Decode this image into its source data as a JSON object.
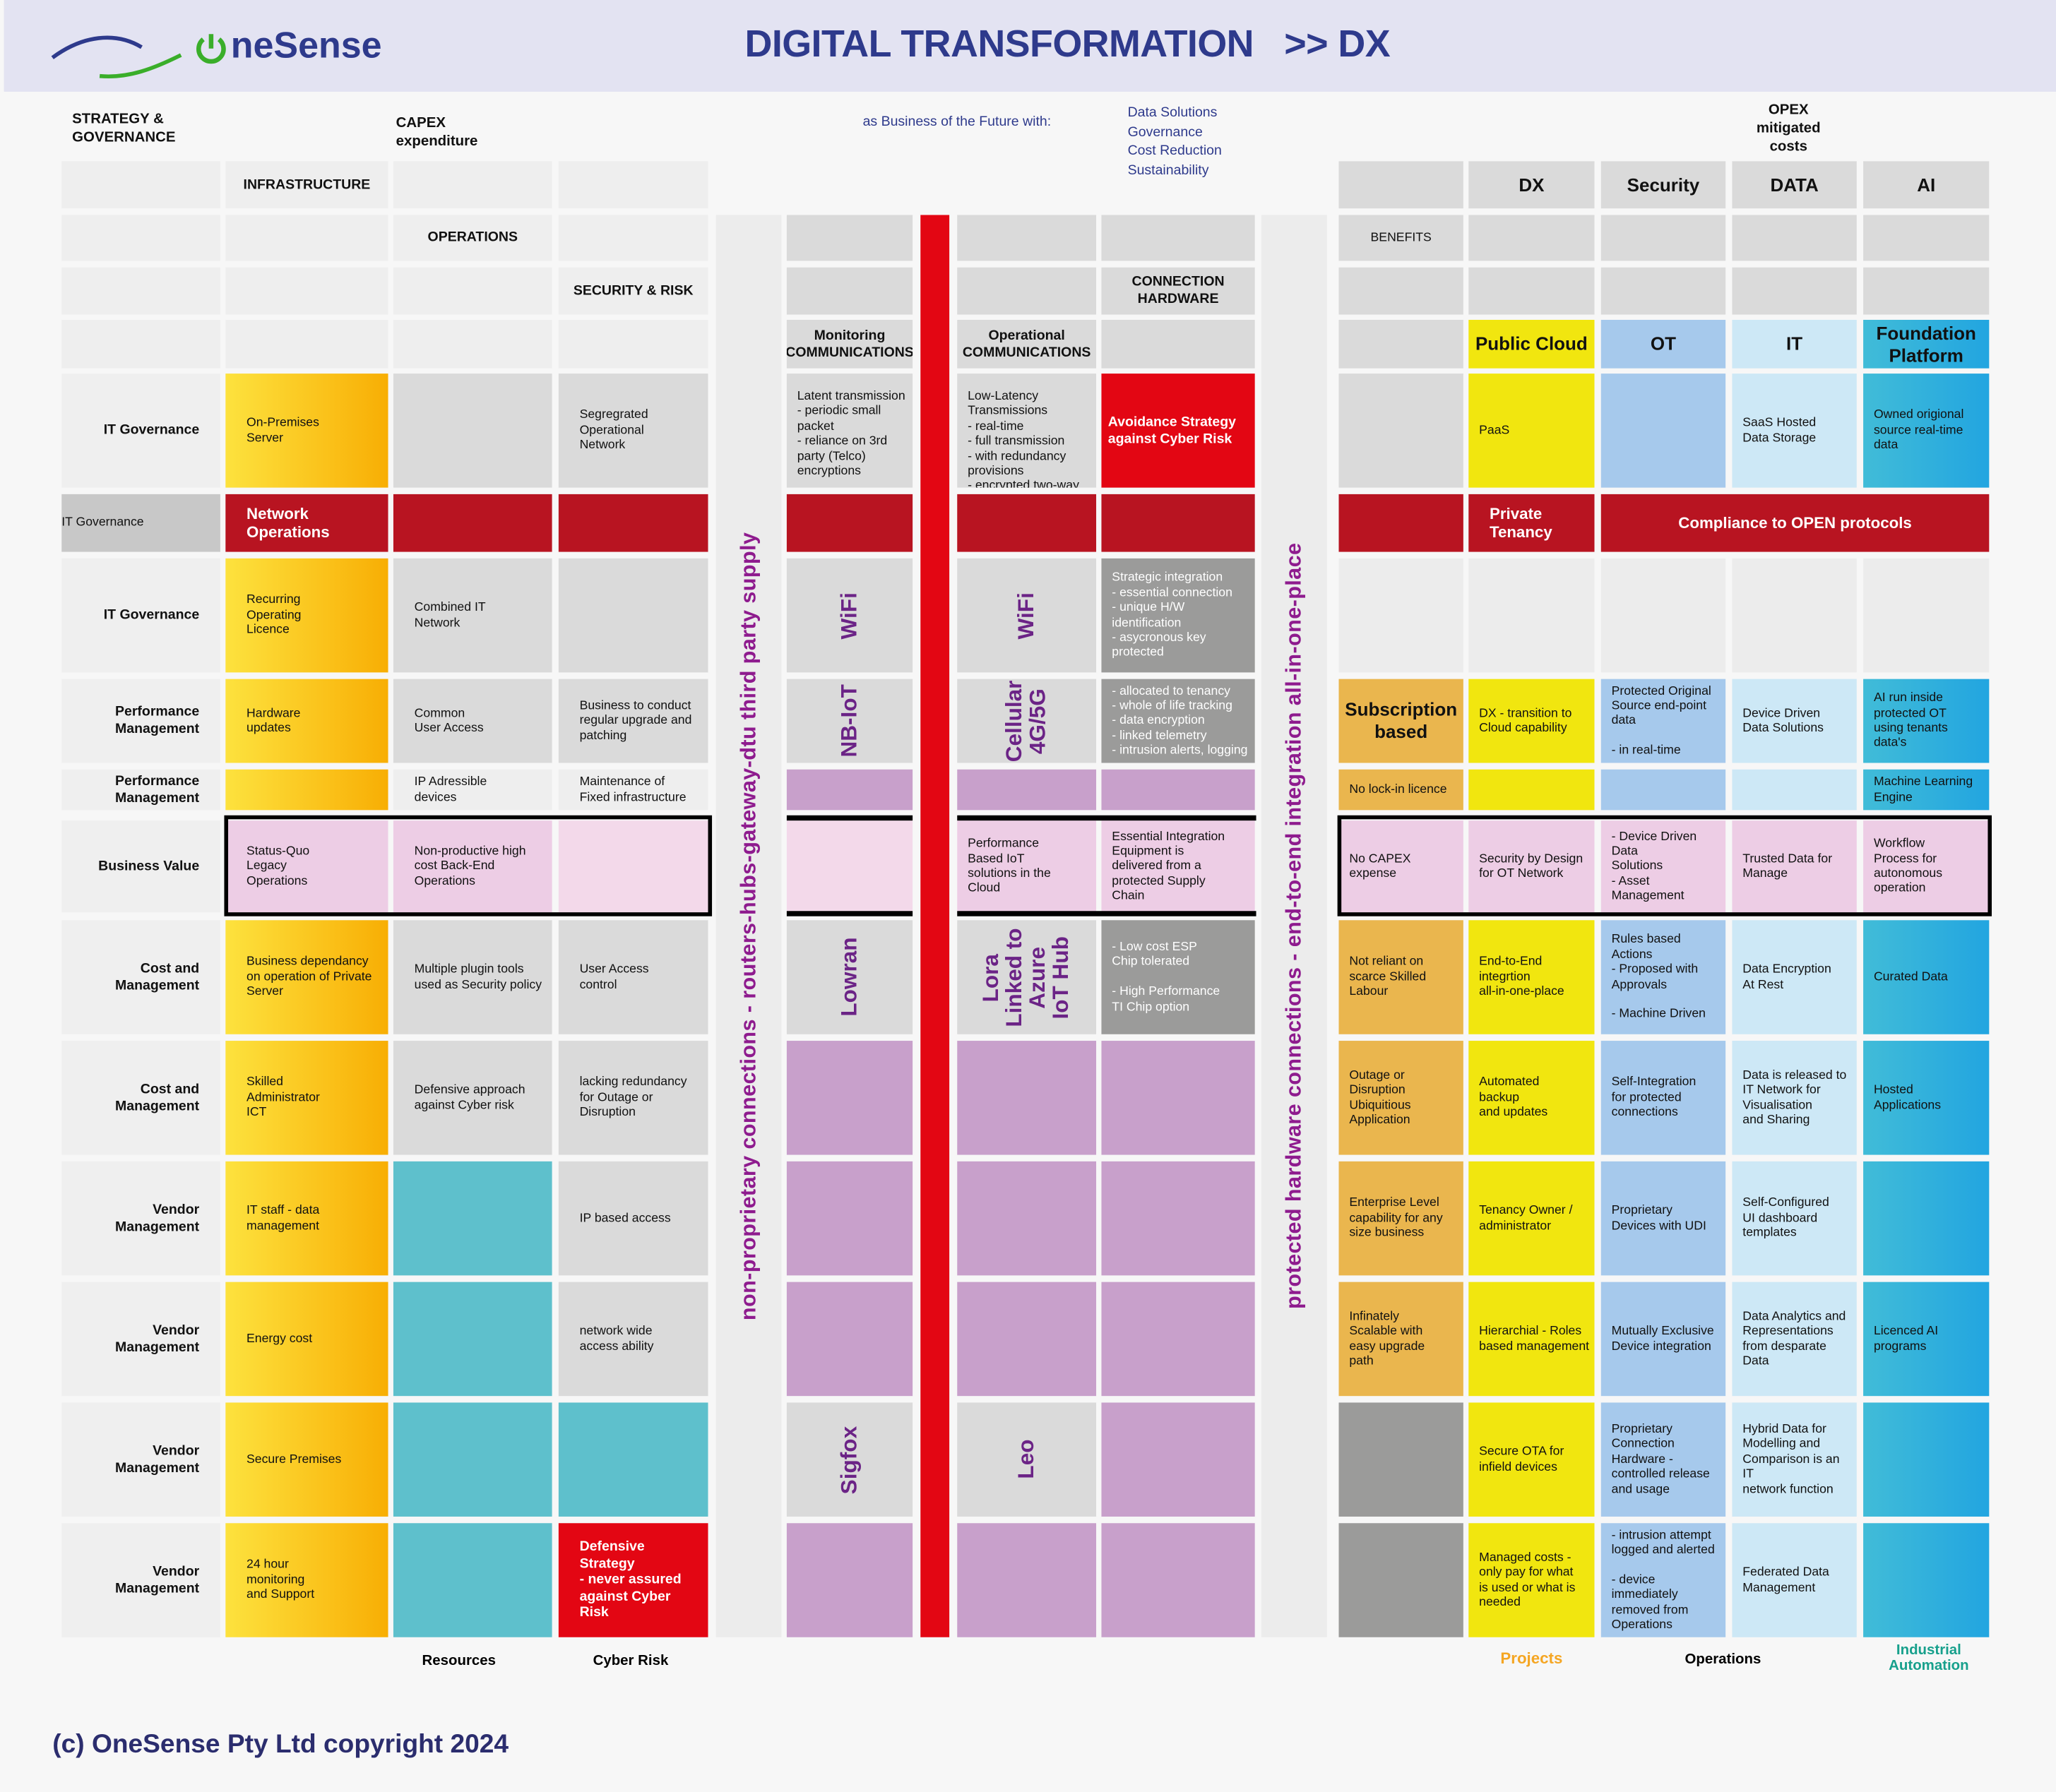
{
  "header": {
    "logo_text": "OneSense",
    "logo_visible": "neSense",
    "title": "DIGITAL TRANSFORMATION",
    "title_suffix": ">> DX",
    "background_color": "#e3e3f2",
    "title_color": "#2e3a8c"
  },
  "top_labels": {
    "strategy": "STRATEGY &\nGOVERNANCE",
    "capex": "CAPEX\nexpenditure",
    "business_future": "as Business of the Future with:",
    "future_items": [
      "Data Solutions",
      "Governance",
      "Cost Reduction",
      "Sustainability"
    ],
    "opex": "OPEX\nmitigated\ncosts"
  },
  "col_headers": {
    "infrastructure": "INFRASTRUCTURE",
    "operations": "OPERATIONS",
    "security_risk": "SECURITY & RISK",
    "monitoring": "Monitoring\nCOMMUNICATIONS",
    "operational": "Operational\nCOMMUNICATIONS",
    "connection_hw": "CONNECTION\nHARDWARE",
    "benefits": "BENEFITS",
    "dx": "DX",
    "security": "Security",
    "data": "DATA",
    "ai": "AI",
    "public_cloud": "Public Cloud",
    "ot": "OT",
    "it": "IT",
    "foundation": "Foundation\nPlatform"
  },
  "rows": [
    {
      "label": "IT Governance",
      "infra": "On-Premises\nServer",
      "monitoring": "Latent transmission\n -  periodic small\n    packet\n - reliance on 3rd\n   party (Telco)\n   encryptions",
      "operational": "Low-Latency Transmissions\n - real-time\n - full transmission\n - with redundancy\n   provisions\n - encrypted two-way\n   data channel",
      "connection": "Avoidance Strategy\nagainst Cyber Risk",
      "dx": "PaaS",
      "security": "Segregrated\nOperational\nNetwork",
      "data": "SaaS Hosted\nData Storage",
      "ai": "Owned origional\nsource real-time\ndata"
    },
    {
      "label": "IT Governance",
      "infra": "Network\nOperations",
      "dx": "Private\nTenancy",
      "compliance": "Compliance to OPEN protocols"
    },
    {
      "label": "IT Governance",
      "infra": "Recurring\nOperating\nLicence",
      "operations": "Combined IT\nNetwork",
      "monitoring": "WiFi",
      "operational": "WiFi",
      "connection": "Strategic integration\n- essential connection\n- unique H/W identification\n- asycronous key protected"
    },
    {
      "label": "Performance\nManagement",
      "infra": "Hardware\nupdates",
      "operations": "Common\nUser Access",
      "security": "Business to conduct\nregular upgrade and\npatching",
      "monitoring": "NB-IoT",
      "operational": "Cellular\n4G/5G",
      "connection": "- allocated to tenancy\n- whole of life tracking\n- data encryption\n- linked telemetry\n- intrusion alerts, logging",
      "benefits": "Subscription\nbased",
      "dx": "DX - transition to\nCloud capability",
      "sec": "Protected Original\nSource end-point\ndata\n\n- in real-time",
      "data": "Device Driven\nData Solutions",
      "ai": "AI run inside\nprotected OT\nusing tenants\ndata's"
    },
    {
      "label": "Performance\nManagement",
      "operations": "IP Adressible\ndevices",
      "security": "Maintenance of\nFixed infrastructure",
      "benefits": "No lock-in licence",
      "ai": "Machine Learning\nEngine"
    },
    {
      "label": "Business Value",
      "infra": "Status-Quo\nLegacy\nOperations",
      "operations": "Non-productive high\ncost Back-End\nOperations",
      "operational": "Performance\nBased IoT\nsolutions in the\nCloud",
      "connection": "Essential Integration\nEquipment is\ndelivered from a\nprotected Supply\nChain",
      "benefits": "No CAPEX\nexpense",
      "dx": "Security by Design\nfor OT Network",
      "sec": "-   Device Driven Data\n    Solutions\n-  Asset Management",
      "data": "Trusted Data for\nManage",
      "ai": "Workflow\nProcess for\nautonomous\noperation"
    },
    {
      "label": "Cost and\nManagement",
      "infra": "Business dependancy\non operation of Private\nServer",
      "operations": "Multiple plugin tools\nused as Security policy",
      "security": "User Access\ncontrol",
      "monitoring": "Lowran",
      "operational": "Lora\nLinked to\nAzure\nIoT Hub",
      "connection": "-  Low cost ESP\n   Chip tolerated\n\n-  High Performance\n   TI Chip option",
      "benefits": "Not reliant on\nscarce Skilled\nLabour",
      "dx": "End-to-End\nintegrtion\nall-in-one-place",
      "sec": "Rules based Actions\n  -  Proposed with\n     Approvals\n\n  - Machine Driven",
      "data": "Data Encryption\nAt Rest",
      "ai": "Curated Data"
    },
    {
      "label": "Cost and\nManagement",
      "infra": "Skilled\nAdministrator\nICT",
      "operations": "Defensive approach\nagainst Cyber risk",
      "security": "lacking redundancy\nfor Outage or\nDisruption",
      "benefits": "Outage or\nDisruption\nUbiquitious\nApplication",
      "dx": "Automated\nbackup\nand updates",
      "sec": "Self-Integration\nfor protected\nconnections",
      "data": "Data is released to\nIT Network for\nVisualisation\nand Sharing",
      "ai": "Hosted\nApplications"
    },
    {
      "label": "Vendor\nManagement",
      "infra": "IT staff - data\nmanagement",
      "security": "IP based access",
      "benefits": "Enterprise Level\ncapability for any\nsize business",
      "dx": "Tenancy Owner /\nadministrator",
      "sec": "Proprietary\nDevices with UDI",
      "data": "Self-Configured\nUI dashboard\ntemplates"
    },
    {
      "label": "Vendor\nManagement",
      "infra": "Energy cost",
      "security": "network wide\naccess ability",
      "benefits": "Infinately\nScalable with\neasy upgrade\npath",
      "dx": "Hierarchial - Roles\nbased management",
      "sec": "Mutually Exclusive\nDevice integration",
      "data": "Data Analytics and\nRepresentations\nfrom desparate\nData",
      "ai": "Licenced AI\nprograms"
    },
    {
      "label": "Vendor\nManagement",
      "infra": "Secure Premises",
      "monitoring": "Sigfox",
      "operational": "Leo",
      "dx": "Secure OTA for\ninfield devices",
      "sec": "Proprietary\nConnection\nHardware -\ncontrolled release\nand usage",
      "data": "Hybrid Data for\nModelling and\nComparison is an IT\nnetwork function"
    },
    {
      "label": "Vendor\nManagement",
      "infra": "24 hour\nmonitoring\nand Support",
      "security": "Defensive Strategy\n- never assured\nagainst Cyber Risk",
      "dx": "Managed costs -\nonly pay for what\nis used or what is\nneeded",
      "sec": "-  intrusion attempt\n   logged and alerted\n\n- device immediately\n  removed from\n  Operations",
      "data": "Federated Data\nManagement"
    }
  ],
  "vertical_bands": {
    "third_party": "non-proprietary connections - routers-hubs-gateway-dtu third party supply",
    "protected": "protected hardware connections - end-to-end integration all-in-one-place"
  },
  "bottom_labels": {
    "resources": "Resources",
    "cyber_risk": "Cyber Risk",
    "projects": "Projects",
    "operations": "Operations",
    "industrial": "Industrial\nAutomation"
  },
  "colors": {
    "projects": "#f5a623",
    "industrial": "#17a08c",
    "band_text": "#8e1b8e",
    "accent_red": "#e30613",
    "dark_red": "#b81421"
  },
  "copyright": "(c) OneSense Pty Ltd copyright 2024"
}
